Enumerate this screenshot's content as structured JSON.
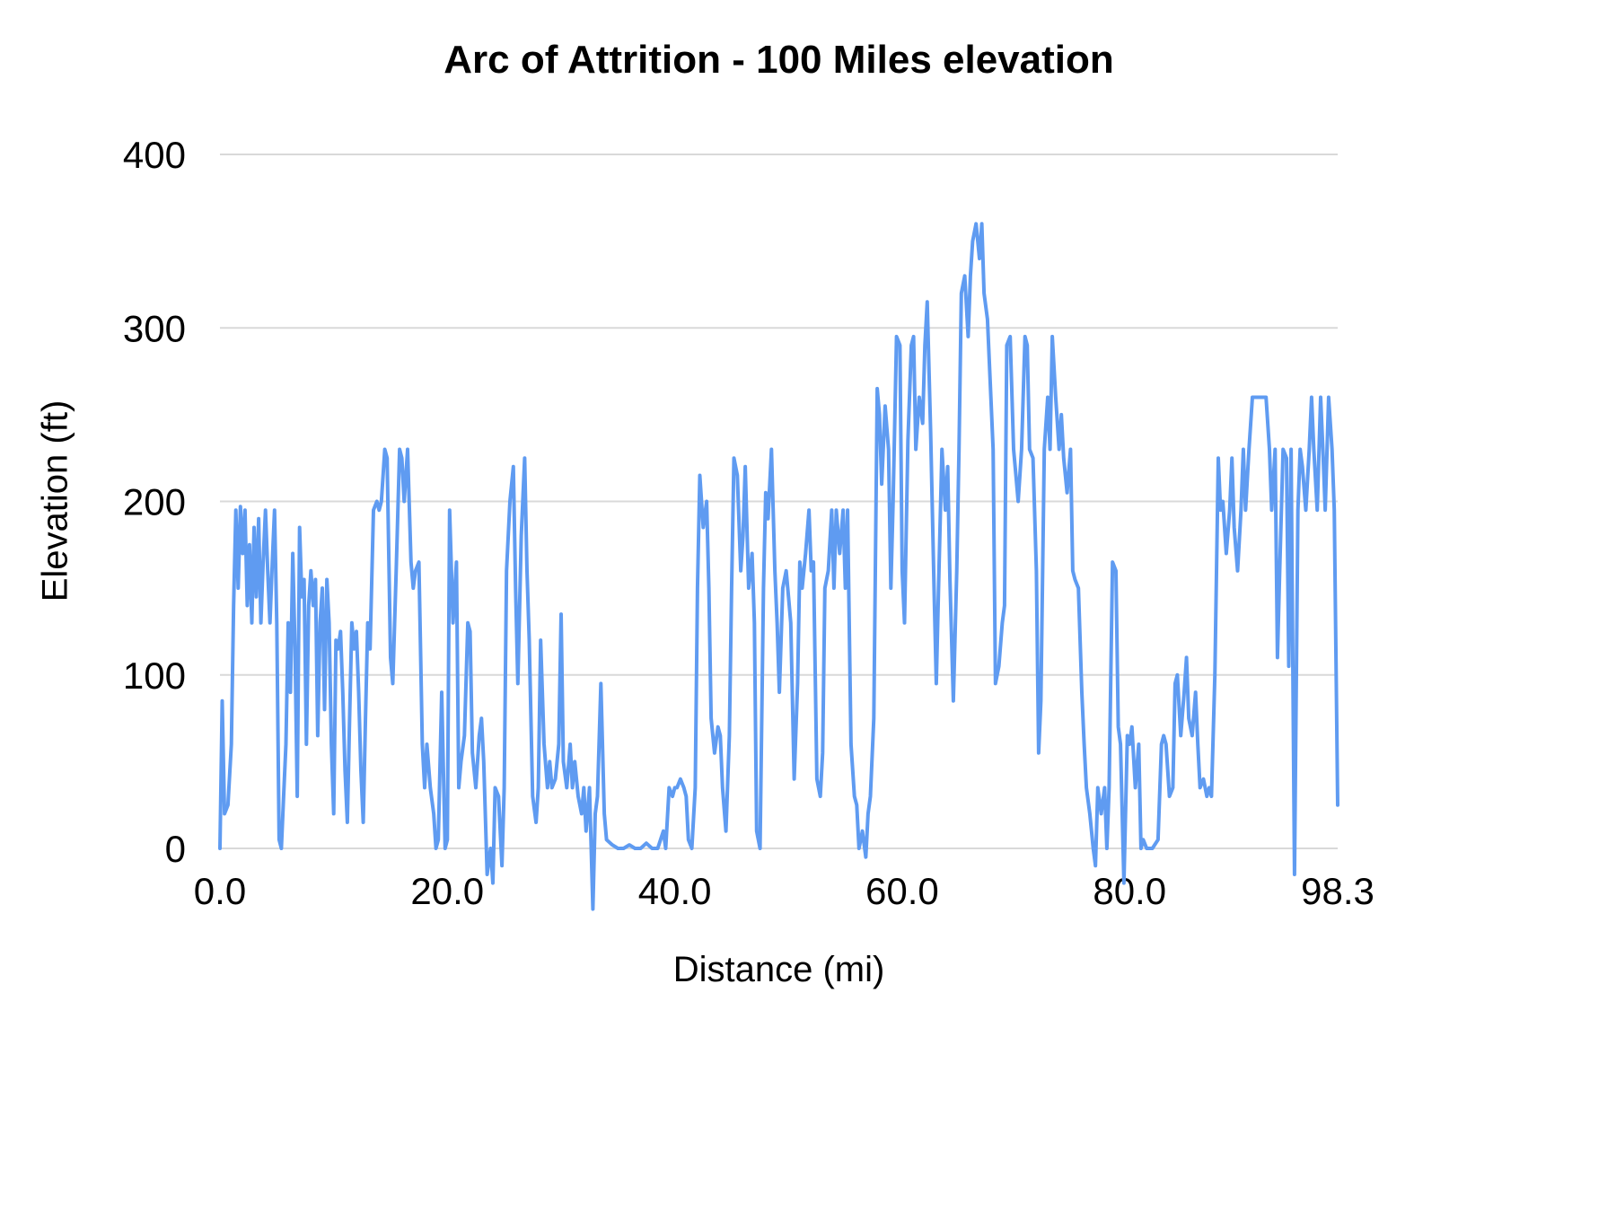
{
  "chart_data": {
    "type": "line",
    "title": "Arc of Attrition - 100 Miles elevation",
    "xlabel": "Distance (mi)",
    "ylabel": "Elevation (ft)",
    "xlim": [
      0,
      98.3
    ],
    "ylim": [
      0,
      400
    ],
    "grid": "horizontal",
    "legend": "none",
    "line_color": "#5f9bf1",
    "gridline_color": "#d9d9d9",
    "yticks": [
      0,
      100,
      200,
      300,
      400
    ],
    "xticks": [
      {
        "value": 0,
        "label": "0.0"
      },
      {
        "value": 20,
        "label": "20.0"
      },
      {
        "value": 40,
        "label": "40.0"
      },
      {
        "value": 60,
        "label": "60.0"
      },
      {
        "value": 80,
        "label": "80.0"
      },
      {
        "value": 98.3,
        "label": "98.3"
      }
    ],
    "series_name": "Elevation",
    "points": [
      [
        0,
        0
      ],
      [
        0.2,
        85
      ],
      [
        0.4,
        20
      ],
      [
        0.7,
        25
      ],
      [
        1,
        60
      ],
      [
        1.2,
        140
      ],
      [
        1.4,
        195
      ],
      [
        1.6,
        150
      ],
      [
        1.8,
        197
      ],
      [
        2,
        170
      ],
      [
        2.2,
        195
      ],
      [
        2.4,
        140
      ],
      [
        2.6,
        175
      ],
      [
        2.8,
        130
      ],
      [
        3,
        185
      ],
      [
        3.2,
        145
      ],
      [
        3.4,
        190
      ],
      [
        3.6,
        130
      ],
      [
        3.8,
        165
      ],
      [
        4,
        195
      ],
      [
        4.2,
        160
      ],
      [
        4.4,
        130
      ],
      [
        4.6,
        165
      ],
      [
        4.8,
        195
      ],
      [
        5,
        130
      ],
      [
        5.2,
        5
      ],
      [
        5.4,
        0
      ],
      [
        5.6,
        30
      ],
      [
        5.8,
        60
      ],
      [
        6,
        130
      ],
      [
        6.2,
        90
      ],
      [
        6.4,
        170
      ],
      [
        6.6,
        115
      ],
      [
        6.8,
        30
      ],
      [
        7,
        185
      ],
      [
        7.2,
        145
      ],
      [
        7.4,
        155
      ],
      [
        7.6,
        60
      ],
      [
        7.8,
        140
      ],
      [
        8,
        160
      ],
      [
        8.2,
        140
      ],
      [
        8.4,
        155
      ],
      [
        8.6,
        65
      ],
      [
        8.8,
        130
      ],
      [
        9,
        150
      ],
      [
        9.2,
        80
      ],
      [
        9.4,
        155
      ],
      [
        9.6,
        130
      ],
      [
        9.8,
        60
      ],
      [
        10,
        20
      ],
      [
        10.2,
        120
      ],
      [
        10.4,
        115
      ],
      [
        10.6,
        125
      ],
      [
        10.8,
        90
      ],
      [
        11,
        45
      ],
      [
        11.2,
        15
      ],
      [
        11.4,
        75
      ],
      [
        11.6,
        130
      ],
      [
        11.8,
        115
      ],
      [
        12,
        125
      ],
      [
        12.2,
        90
      ],
      [
        12.4,
        45
      ],
      [
        12.6,
        15
      ],
      [
        12.8,
        75
      ],
      [
        13,
        130
      ],
      [
        13.2,
        115
      ],
      [
        13.5,
        195
      ],
      [
        13.8,
        200
      ],
      [
        14,
        195
      ],
      [
        14.2,
        200
      ],
      [
        14.5,
        230
      ],
      [
        14.7,
        225
      ],
      [
        15,
        110
      ],
      [
        15.2,
        95
      ],
      [
        15.5,
        160
      ],
      [
        15.8,
        230
      ],
      [
        16,
        225
      ],
      [
        16.2,
        200
      ],
      [
        16.5,
        230
      ],
      [
        16.8,
        165
      ],
      [
        17,
        150
      ],
      [
        17.2,
        160
      ],
      [
        17.5,
        165
      ],
      [
        17.8,
        60
      ],
      [
        18,
        35
      ],
      [
        18.2,
        60
      ],
      [
        18.5,
        35
      ],
      [
        18.8,
        20
      ],
      [
        19,
        0
      ],
      [
        19.2,
        5
      ],
      [
        19.5,
        90
      ],
      [
        19.8,
        0
      ],
      [
        20,
        5
      ],
      [
        20.2,
        195
      ],
      [
        20.5,
        130
      ],
      [
        20.8,
        165
      ],
      [
        21,
        35
      ],
      [
        21.2,
        50
      ],
      [
        21.5,
        65
      ],
      [
        21.8,
        130
      ],
      [
        22,
        125
      ],
      [
        22.2,
        55
      ],
      [
        22.5,
        35
      ],
      [
        22.8,
        65
      ],
      [
        23,
        75
      ],
      [
        23.2,
        50
      ],
      [
        23.5,
        -15
      ],
      [
        23.8,
        0
      ],
      [
        24,
        -20
      ],
      [
        24.2,
        35
      ],
      [
        24.5,
        30
      ],
      [
        24.8,
        -10
      ],
      [
        25,
        35
      ],
      [
        25.2,
        160
      ],
      [
        25.5,
        200
      ],
      [
        25.8,
        220
      ],
      [
        26,
        150
      ],
      [
        26.2,
        95
      ],
      [
        26.5,
        180
      ],
      [
        26.8,
        225
      ],
      [
        27,
        160
      ],
      [
        27.2,
        120
      ],
      [
        27.5,
        30
      ],
      [
        27.8,
        15
      ],
      [
        28,
        35
      ],
      [
        28.2,
        120
      ],
      [
        28.5,
        60
      ],
      [
        28.8,
        35
      ],
      [
        29,
        50
      ],
      [
        29.2,
        35
      ],
      [
        29.5,
        40
      ],
      [
        29.8,
        60
      ],
      [
        30,
        135
      ],
      [
        30.2,
        50
      ],
      [
        30.5,
        35
      ],
      [
        30.8,
        60
      ],
      [
        31,
        35
      ],
      [
        31.2,
        50
      ],
      [
        31.5,
        30
      ],
      [
        31.8,
        20
      ],
      [
        32,
        35
      ],
      [
        32.2,
        10
      ],
      [
        32.5,
        35
      ],
      [
        32.8,
        -35
      ],
      [
        33,
        20
      ],
      [
        33.2,
        30
      ],
      [
        33.5,
        95
      ],
      [
        33.8,
        20
      ],
      [
        34,
        5
      ],
      [
        34.5,
        2
      ],
      [
        35,
        0
      ],
      [
        35.5,
        0
      ],
      [
        36,
        2
      ],
      [
        36.5,
        0
      ],
      [
        37,
        0
      ],
      [
        37.5,
        3
      ],
      [
        38,
        0
      ],
      [
        38.5,
        0
      ],
      [
        39,
        10
      ],
      [
        39.2,
        0
      ],
      [
        39.5,
        35
      ],
      [
        39.8,
        30
      ],
      [
        40,
        35
      ],
      [
        40.2,
        35
      ],
      [
        40.5,
        40
      ],
      [
        40.8,
        35
      ],
      [
        41,
        30
      ],
      [
        41.2,
        5
      ],
      [
        41.5,
        0
      ],
      [
        41.8,
        35
      ],
      [
        42,
        150
      ],
      [
        42.2,
        215
      ],
      [
        42.5,
        185
      ],
      [
        42.8,
        200
      ],
      [
        43,
        150
      ],
      [
        43.2,
        75
      ],
      [
        43.5,
        55
      ],
      [
        43.8,
        70
      ],
      [
        44,
        65
      ],
      [
        44.2,
        35
      ],
      [
        44.5,
        10
      ],
      [
        44.8,
        65
      ],
      [
        45,
        150
      ],
      [
        45.2,
        225
      ],
      [
        45.5,
        215
      ],
      [
        45.8,
        160
      ],
      [
        46,
        180
      ],
      [
        46.2,
        220
      ],
      [
        46.5,
        150
      ],
      [
        46.8,
        170
      ],
      [
        47,
        130
      ],
      [
        47.2,
        10
      ],
      [
        47.5,
        0
      ],
      [
        47.8,
        150
      ],
      [
        48,
        205
      ],
      [
        48.2,
        190
      ],
      [
        48.5,
        230
      ],
      [
        48.8,
        160
      ],
      [
        49,
        130
      ],
      [
        49.2,
        90
      ],
      [
        49.5,
        150
      ],
      [
        49.8,
        160
      ],
      [
        50,
        145
      ],
      [
        50.2,
        130
      ],
      [
        50.5,
        40
      ],
      [
        50.8,
        95
      ],
      [
        51,
        165
      ],
      [
        51.2,
        150
      ],
      [
        51.5,
        170
      ],
      [
        51.8,
        195
      ],
      [
        52,
        160
      ],
      [
        52.2,
        165
      ],
      [
        52.5,
        40
      ],
      [
        52.8,
        30
      ],
      [
        53,
        55
      ],
      [
        53.2,
        150
      ],
      [
        53.5,
        160
      ],
      [
        53.8,
        195
      ],
      [
        54,
        150
      ],
      [
        54.2,
        195
      ],
      [
        54.5,
        170
      ],
      [
        54.8,
        195
      ],
      [
        55,
        150
      ],
      [
        55.2,
        195
      ],
      [
        55.5,
        60
      ],
      [
        55.8,
        30
      ],
      [
        56,
        25
      ],
      [
        56.2,
        0
      ],
      [
        56.5,
        10
      ],
      [
        56.8,
        -5
      ],
      [
        57,
        20
      ],
      [
        57.2,
        30
      ],
      [
        57.5,
        75
      ],
      [
        57.8,
        265
      ],
      [
        58,
        250
      ],
      [
        58.2,
        210
      ],
      [
        58.5,
        255
      ],
      [
        58.8,
        230
      ],
      [
        59,
        150
      ],
      [
        59.2,
        200
      ],
      [
        59.5,
        295
      ],
      [
        59.8,
        290
      ],
      [
        60,
        160
      ],
      [
        60.2,
        130
      ],
      [
        60.5,
        235
      ],
      [
        60.8,
        290
      ],
      [
        61,
        295
      ],
      [
        61.2,
        230
      ],
      [
        61.5,
        260
      ],
      [
        61.8,
        245
      ],
      [
        62,
        290
      ],
      [
        62.2,
        315
      ],
      [
        62.5,
        240
      ],
      [
        62.8,
        150
      ],
      [
        63,
        95
      ],
      [
        63.2,
        150
      ],
      [
        63.5,
        230
      ],
      [
        63.8,
        195
      ],
      [
        64,
        220
      ],
      [
        64.2,
        155
      ],
      [
        64.5,
        85
      ],
      [
        64.8,
        160
      ],
      [
        65,
        230
      ],
      [
        65.2,
        320
      ],
      [
        65.5,
        330
      ],
      [
        65.8,
        295
      ],
      [
        66,
        330
      ],
      [
        66.2,
        350
      ],
      [
        66.5,
        360
      ],
      [
        66.8,
        340
      ],
      [
        67,
        360
      ],
      [
        67.2,
        320
      ],
      [
        67.5,
        305
      ],
      [
        67.8,
        260
      ],
      [
        68,
        230
      ],
      [
        68.2,
        95
      ],
      [
        68.5,
        105
      ],
      [
        68.8,
        130
      ],
      [
        69,
        140
      ],
      [
        69.2,
        290
      ],
      [
        69.5,
        295
      ],
      [
        69.8,
        230
      ],
      [
        70,
        215
      ],
      [
        70.2,
        200
      ],
      [
        70.5,
        230
      ],
      [
        70.8,
        295
      ],
      [
        71,
        290
      ],
      [
        71.2,
        230
      ],
      [
        71.5,
        225
      ],
      [
        71.8,
        160
      ],
      [
        72,
        55
      ],
      [
        72.2,
        85
      ],
      [
        72.5,
        230
      ],
      [
        72.8,
        260
      ],
      [
        73,
        230
      ],
      [
        73.2,
        295
      ],
      [
        73.5,
        260
      ],
      [
        73.8,
        230
      ],
      [
        74,
        250
      ],
      [
        74.2,
        225
      ],
      [
        74.5,
        205
      ],
      [
        74.8,
        230
      ],
      [
        75,
        160
      ],
      [
        75.2,
        155
      ],
      [
        75.5,
        150
      ],
      [
        75.8,
        90
      ],
      [
        76,
        60
      ],
      [
        76.2,
        35
      ],
      [
        76.5,
        20
      ],
      [
        76.8,
        0
      ],
      [
        77,
        -10
      ],
      [
        77.2,
        35
      ],
      [
        77.5,
        20
      ],
      [
        77.8,
        35
      ],
      [
        78,
        0
      ],
      [
        78.2,
        35
      ],
      [
        78.5,
        165
      ],
      [
        78.8,
        160
      ],
      [
        79,
        70
      ],
      [
        79.2,
        60
      ],
      [
        79.5,
        -20
      ],
      [
        79.8,
        65
      ],
      [
        80,
        60
      ],
      [
        80.2,
        70
      ],
      [
        80.5,
        35
      ],
      [
        80.8,
        60
      ],
      [
        81,
        0
      ],
      [
        81.2,
        5
      ],
      [
        81.5,
        0
      ],
      [
        82,
        0
      ],
      [
        82.5,
        5
      ],
      [
        82.8,
        60
      ],
      [
        83,
        65
      ],
      [
        83.2,
        60
      ],
      [
        83.5,
        30
      ],
      [
        83.8,
        35
      ],
      [
        84,
        95
      ],
      [
        84.2,
        100
      ],
      [
        84.5,
        65
      ],
      [
        84.8,
        90
      ],
      [
        85,
        110
      ],
      [
        85.2,
        75
      ],
      [
        85.5,
        65
      ],
      [
        85.8,
        90
      ],
      [
        86,
        60
      ],
      [
        86.2,
        35
      ],
      [
        86.5,
        40
      ],
      [
        86.8,
        30
      ],
      [
        87,
        35
      ],
      [
        87.2,
        30
      ],
      [
        87.5,
        100
      ],
      [
        87.8,
        225
      ],
      [
        88,
        195
      ],
      [
        88.2,
        200
      ],
      [
        88.5,
        170
      ],
      [
        88.8,
        195
      ],
      [
        89,
        225
      ],
      [
        89.2,
        185
      ],
      [
        89.5,
        160
      ],
      [
        89.8,
        195
      ],
      [
        90,
        230
      ],
      [
        90.2,
        195
      ],
      [
        90.5,
        230
      ],
      [
        90.8,
        260
      ],
      [
        91,
        260
      ],
      [
        91.5,
        260
      ],
      [
        92,
        260
      ],
      [
        92.3,
        230
      ],
      [
        92.5,
        195
      ],
      [
        92.8,
        230
      ],
      [
        93,
        110
      ],
      [
        93.2,
        160
      ],
      [
        93.5,
        230
      ],
      [
        93.8,
        225
      ],
      [
        94,
        105
      ],
      [
        94.2,
        230
      ],
      [
        94.5,
        -15
      ],
      [
        94.8,
        195
      ],
      [
        95,
        230
      ],
      [
        95.2,
        220
      ],
      [
        95.5,
        195
      ],
      [
        95.8,
        230
      ],
      [
        96,
        260
      ],
      [
        96.2,
        230
      ],
      [
        96.5,
        195
      ],
      [
        96.8,
        260
      ],
      [
        97,
        230
      ],
      [
        97.2,
        195
      ],
      [
        97.5,
        260
      ],
      [
        97.8,
        230
      ],
      [
        98,
        195
      ],
      [
        98.3,
        25
      ]
    ]
  }
}
